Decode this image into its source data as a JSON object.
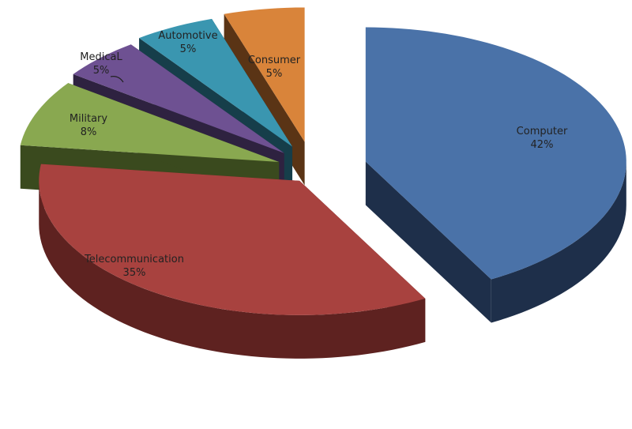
{
  "chart_data": {
    "type": "pie",
    "style": "3d-exploded",
    "title": "",
    "legend": "none",
    "slices": [
      {
        "label": "Computer",
        "value": 42,
        "value_label": "42%",
        "color": "#4a72a8",
        "side_color": "#1e2f4a"
      },
      {
        "label": "Telecommunication",
        "value": 35,
        "value_label": "35%",
        "color": "#a8423f",
        "side_color": "#5e2220"
      },
      {
        "label": "Military",
        "value": 8,
        "value_label": "8%",
        "color": "#89a850",
        "side_color": "#3a4a1e"
      },
      {
        "label": "MedicaL",
        "value": 5,
        "value_label": "5%",
        "color": "#6e5192",
        "side_color": "#2e2240"
      },
      {
        "label": "Automotive",
        "value": 5,
        "value_label": "5%",
        "color": "#3a96b0",
        "side_color": "#163e4a"
      },
      {
        "label": "Consumer",
        "value": 5,
        "value_label": "5%",
        "color": "#d9843a",
        "side_color": "#5a3415"
      }
    ]
  }
}
